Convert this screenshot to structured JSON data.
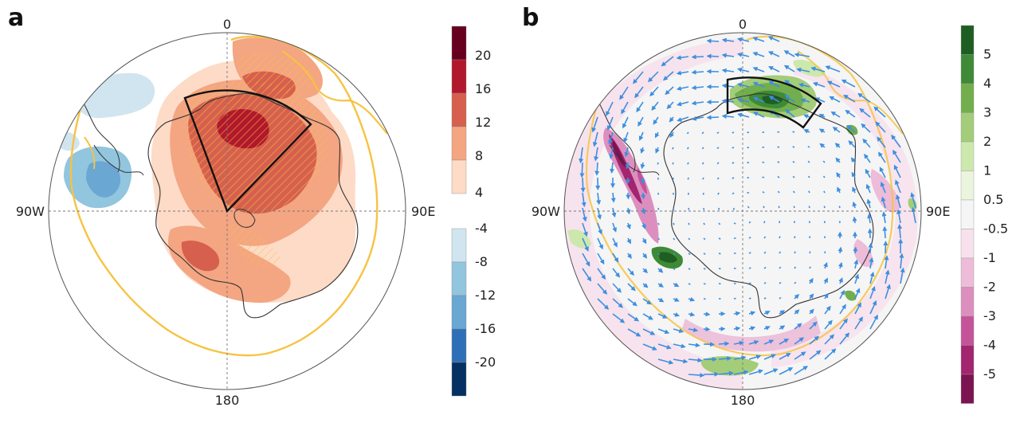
{
  "panels": [
    {
      "letter": "a",
      "degree_labels": {
        "top": "0",
        "bottom": "180",
        "left": "90W",
        "right": "90E"
      },
      "colorbar": {
        "warm_ticks": [
          "20",
          "16",
          "12",
          "8",
          "4"
        ],
        "cool_ticks": [
          "-4",
          "-8",
          "-12",
          "-16",
          "-20"
        ],
        "warm_colors": [
          "#67001f",
          "#b2182b",
          "#d6604d",
          "#f4a582",
          "#fddbc7"
        ],
        "cool_colors": [
          "#d1e5f0",
          "#92c5de",
          "#6aa7d3",
          "#2f6fb7",
          "#053061"
        ]
      }
    },
    {
      "letter": "b",
      "degree_labels": {
        "top": "0",
        "bottom": "180",
        "left": "90W",
        "right": "90E"
      },
      "colorbar": {
        "ticks": [
          "5",
          "4",
          "3",
          "2",
          "1",
          "0.5",
          "-0.5",
          "-1",
          "-2",
          "-3",
          "-4",
          "-5"
        ],
        "colors": [
          "#1f5e22",
          "#3e8a36",
          "#72ae4d",
          "#a3cd78",
          "#cde8ad",
          "#ebf5dd",
          "#f5f5f5",
          "#f7e1ec",
          "#ecbcd8",
          "#dc8fbf",
          "#c5539a",
          "#a3246f",
          "#7b1450"
        ]
      }
    }
  ],
  "colors": {
    "contour": "#f6c343",
    "wind_vectors": "#3d8fe0",
    "box": "#111111",
    "coast": "#333333"
  }
}
